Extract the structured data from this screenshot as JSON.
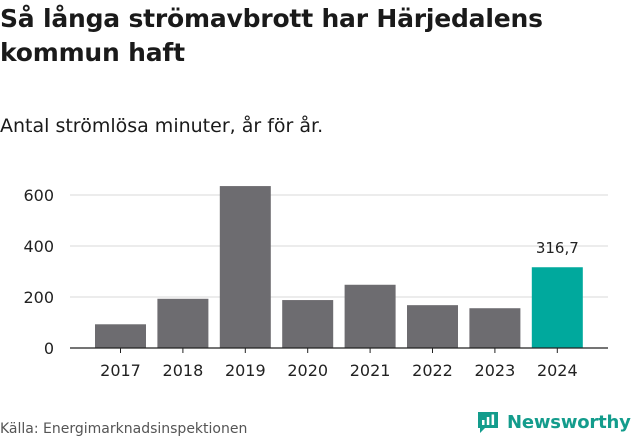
{
  "header": {
    "title": "Så långa strömavbrott har Härjedalens kommun haft",
    "subtitle": "Antal strömlösa minuter, år för år."
  },
  "footer": {
    "source": "Källa: Energimarknadsinspektionen",
    "brand": "Newsworthy",
    "brand_icon": "newsworthy-logo-icon"
  },
  "colors": {
    "bar": "#6d6c70",
    "highlight": "#00a99d",
    "grid": "#d9d9d9",
    "axis": "#222222",
    "brand": "#139c8c"
  },
  "chart_data": {
    "type": "bar",
    "title": "Så långa strömavbrott har Härjedalens kommun haft",
    "subtitle": "Antal strömlösa minuter, år för år.",
    "categories": [
      "2017",
      "2018",
      "2019",
      "2020",
      "2021",
      "2022",
      "2023",
      "2024"
    ],
    "values": [
      93,
      193,
      635,
      188,
      248,
      168,
      156,
      316.7
    ],
    "highlight_index": 7,
    "data_labels": [
      {
        "index": 7,
        "text": "316,7"
      }
    ],
    "yticks": [
      0,
      200,
      400,
      600
    ],
    "ylim": [
      0,
      660
    ],
    "grid": true,
    "legend": "none"
  }
}
